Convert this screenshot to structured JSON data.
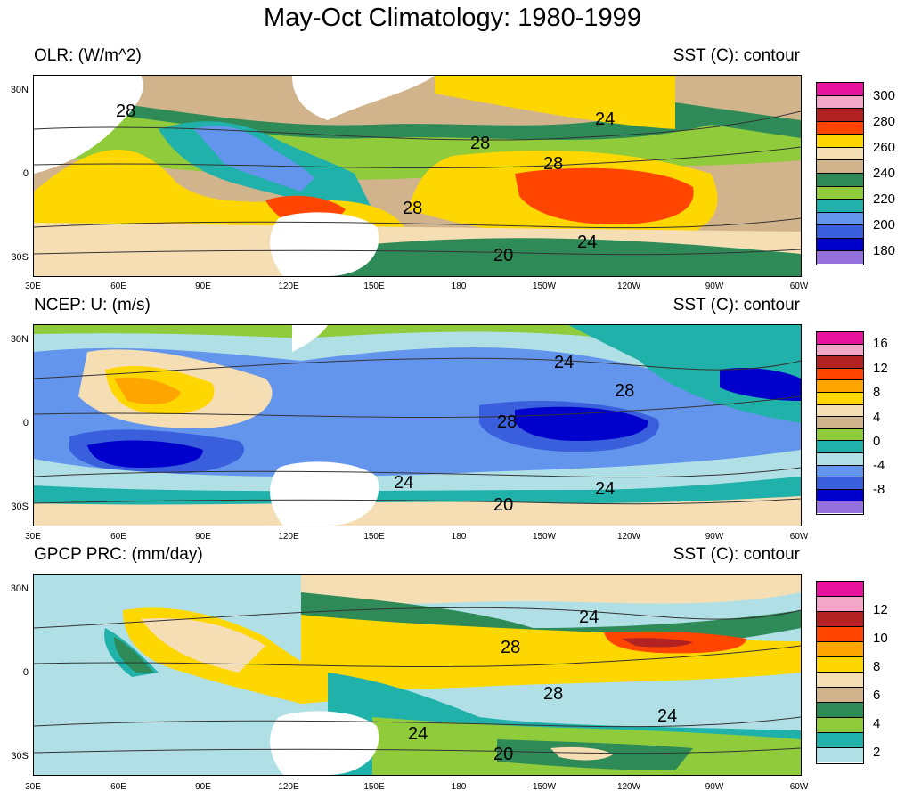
{
  "title": "May-Oct Climatology: 1980-1999",
  "panels": [
    {
      "left_title": "OLR: (W/m^2)",
      "right_title": "SST (C): contour",
      "colorbar_labels": [
        "300",
        "280",
        "260",
        "240",
        "220",
        "200",
        "180"
      ],
      "colorbar_colors": [
        "#e8139c",
        "#f2a6c8",
        "#b22222",
        "#ff4500",
        "#ffd700",
        "#f5deb3",
        "#d2b48c",
        "#2e8b57",
        "#8fcb3a",
        "#20b2aa",
        "#6495ed",
        "#3a5fdc",
        "#0000cd",
        "#9370db"
      ],
      "contour_labels": [
        "28",
        "28",
        "28",
        "28",
        "24",
        "24",
        "20"
      ]
    },
    {
      "left_title": "NCEP: U: (m/s)",
      "right_title": "SST (C): contour",
      "colorbar_labels": [
        "16",
        "12",
        "8",
        "4",
        "0",
        "-4",
        "-8"
      ],
      "colorbar_colors": [
        "#e8139c",
        "#f2a6c8",
        "#b22222",
        "#ff4500",
        "#ffa500",
        "#ffd700",
        "#f5deb3",
        "#d2b48c",
        "#8fcb3a",
        "#20b2aa",
        "#b0e0e6",
        "#6495ed",
        "#3a5fdc",
        "#0000cd",
        "#9370db"
      ],
      "contour_labels": [
        "24",
        "28",
        "28",
        "24",
        "24",
        "20"
      ]
    },
    {
      "left_title": "GPCP PRC: (mm/day)",
      "right_title": "SST (C): contour",
      "colorbar_labels": [
        "12",
        "10",
        "8",
        "6",
        "4",
        "2"
      ],
      "colorbar_colors": [
        "#e8139c",
        "#f2a6c8",
        "#b22222",
        "#ff4500",
        "#ffa500",
        "#ffd700",
        "#f5deb3",
        "#d2b48c",
        "#2e8b57",
        "#8fcb3a",
        "#20b2aa",
        "#b0e0e6"
      ],
      "contour_labels": [
        "24",
        "28",
        "28",
        "24",
        "24",
        "20"
      ]
    }
  ],
  "lat_labels": [
    "30N",
    "0",
    "30S"
  ],
  "lon_labels": [
    "30E",
    "60E",
    "90E",
    "120E",
    "150E",
    "180",
    "150W",
    "120W",
    "90W",
    "60W"
  ]
}
